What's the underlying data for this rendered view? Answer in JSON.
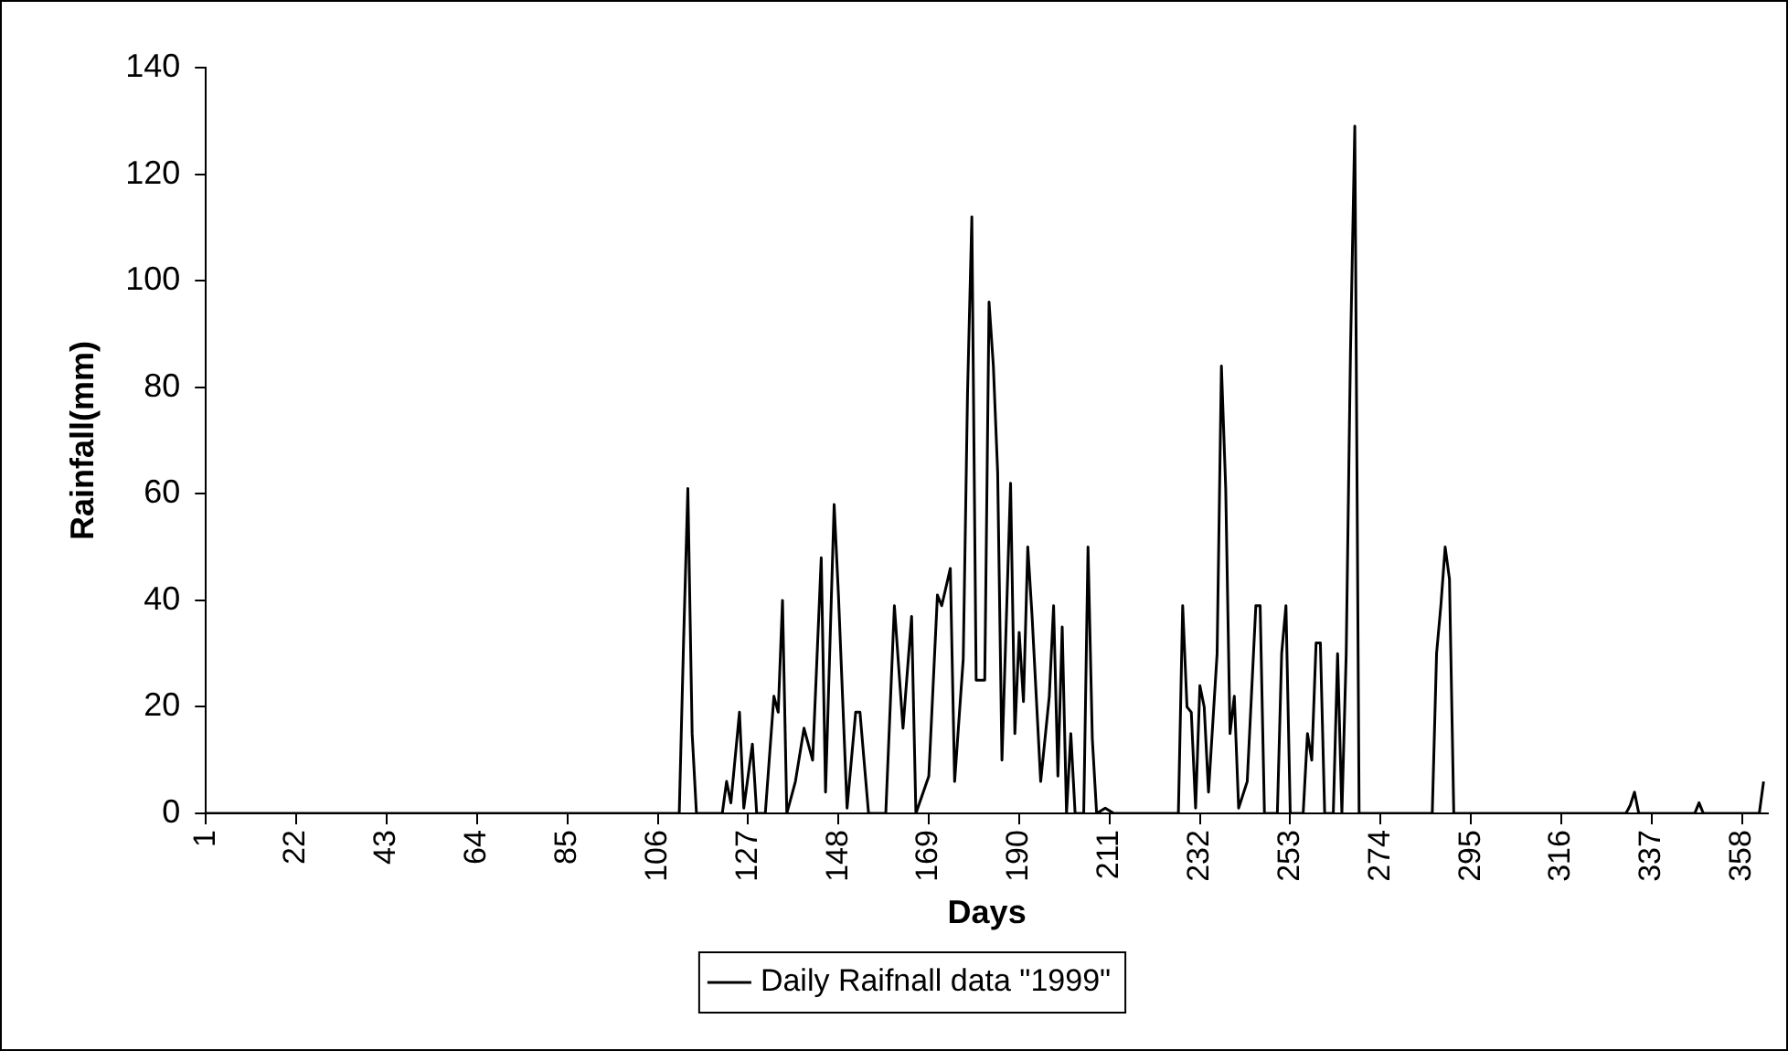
{
  "chart_data": {
    "type": "line",
    "xlabel": "Days",
    "ylabel": "Rainfall(mm)",
    "xlim": [
      1,
      364
    ],
    "xticks": [
      1,
      22,
      43,
      64,
      85,
      106,
      127,
      148,
      169,
      190,
      211,
      232,
      253,
      274,
      295,
      316,
      337,
      358
    ],
    "ylim": [
      0,
      140
    ],
    "yticks": [
      0,
      20,
      40,
      60,
      80,
      100,
      120,
      140
    ],
    "grid": false,
    "legend": "bottom",
    "marker": "none",
    "line_style": "solid",
    "series": [
      {
        "name": "Daily Raifnall data \"1999\"",
        "color": "#000000",
        "x": [
          1,
          111,
          112,
          113,
          114,
          115,
          121,
          122,
          123,
          125,
          126,
          128,
          129,
          131,
          133,
          134,
          135,
          136,
          138,
          140,
          142,
          144,
          145,
          147,
          148,
          150,
          152,
          153,
          155,
          159,
          161,
          163,
          165,
          166,
          169,
          171,
          172,
          174,
          175,
          177,
          178,
          179,
          180,
          182,
          183,
          184,
          185,
          186,
          188,
          189,
          190,
          191,
          192,
          193,
          195,
          197,
          198,
          199,
          200,
          201,
          202,
          203,
          205,
          206,
          207,
          208,
          210,
          212,
          227,
          228,
          229,
          230,
          231,
          232,
          233,
          234,
          236,
          237,
          238,
          239,
          240,
          241,
          243,
          245,
          246,
          247,
          250,
          251,
          252,
          253,
          256,
          257,
          258,
          259,
          260,
          261,
          263,
          264,
          265,
          266,
          267,
          268,
          269,
          286,
          287,
          288,
          289,
          290,
          291,
          331,
          332,
          333,
          334,
          347,
          348,
          349,
          362,
          363
        ],
        "values": [
          0,
          0,
          32,
          61,
          15,
          0,
          0,
          6,
          2,
          19,
          1,
          13,
          0,
          0,
          22,
          19,
          40,
          0,
          6,
          16,
          10,
          48,
          4,
          58,
          41,
          1,
          19,
          19,
          0,
          0,
          39,
          16,
          37,
          0,
          7,
          41,
          39,
          46,
          6,
          29,
          79,
          112,
          25,
          25,
          96,
          84,
          64,
          10,
          62,
          15,
          34,
          21,
          50,
          37,
          6,
          22,
          39,
          7,
          35,
          0,
          15,
          0,
          0,
          50,
          14,
          0,
          1,
          0,
          0,
          39,
          20,
          19,
          1,
          24,
          20,
          4,
          30,
          84,
          61,
          15,
          22,
          1,
          6,
          39,
          39,
          0,
          0,
          30,
          39,
          0,
          0,
          15,
          10,
          32,
          32,
          0,
          0,
          30,
          0,
          30,
          87,
          129,
          0,
          0,
          30,
          39,
          50,
          44,
          0,
          0,
          1.5,
          4,
          0,
          0,
          2,
          0,
          0,
          6
        ]
      }
    ]
  }
}
